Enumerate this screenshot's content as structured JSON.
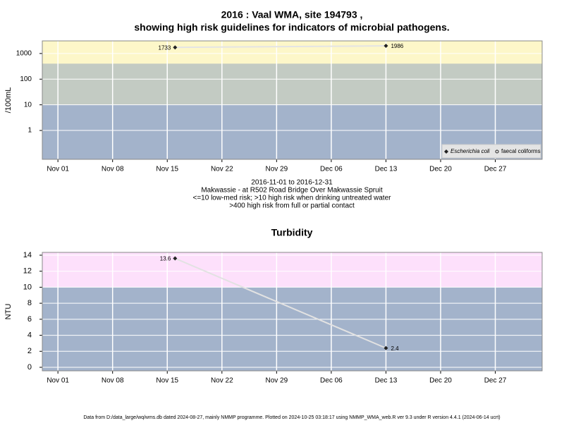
{
  "chart_data": [
    {
      "type": "line",
      "title": [
        "2016 : Vaal WMA, site 194793 ,",
        "showing high risk guidelines for indicators of microbial pathogens."
      ],
      "notes": [
        "2016-11-01 to 2016-12-31",
        "Makwassie - at R502 Road Bridge Over Makwassie Spruit",
        "<=10 low-med risk; >10 high risk when drinking untreated water",
        ">400 high risk from full or partial contact"
      ],
      "y_label": "/100mL",
      "log_y": true,
      "x": [
        "2016-11-16",
        "2016-12-13"
      ],
      "series": [
        {
          "name": "Escherichia coli",
          "color": "#222222",
          "line_color": "#e4e4e4",
          "marker": "diamond",
          "values": [
            1733,
            1986
          ]
        },
        {
          "name": "faecal coliforms",
          "color": "#222222",
          "line_color": "#e4e4e4",
          "marker": "circle",
          "values": [
            null,
            null
          ]
        }
      ],
      "xlim": [
        "2016-10-30",
        "2017-01-02"
      ],
      "xticks": [
        {
          "value": "2016-11-01",
          "label": "Nov 01"
        },
        {
          "value": "2016-11-08",
          "label": "Nov 08"
        },
        {
          "value": "2016-11-15",
          "label": "Nov 15"
        },
        {
          "value": "2016-11-22",
          "label": "Nov 22"
        },
        {
          "value": "2016-11-29",
          "label": "Nov 29"
        },
        {
          "value": "2016-12-06",
          "label": "Dec 06"
        },
        {
          "value": "2016-12-13",
          "label": "Dec 13"
        },
        {
          "value": "2016-12-20",
          "label": "Dec 20"
        },
        {
          "value": "2016-12-27",
          "label": "Dec 27"
        }
      ],
      "ylim": [
        0.075,
        3100
      ],
      "yticks": [
        1,
        10,
        100,
        1000
      ],
      "grid": true,
      "background": "#a3b3cb",
      "bands": [
        {
          "from": 10,
          "to": 400,
          "color": "#c3cbc3"
        },
        {
          "from": 400,
          "to": 3100,
          "color": "#fdf7c9"
        }
      ],
      "legend": "lower right"
    },
    {
      "type": "line",
      "title": [
        "Turbidity"
      ],
      "y_label": "NTU",
      "x": [
        "2016-11-16",
        "2016-12-13"
      ],
      "series": [
        {
          "name": null,
          "color": "#222222",
          "line_color": "#e2e2e2",
          "marker": "diamond",
          "values": [
            13.6,
            2.4
          ]
        }
      ],
      "xlim": [
        "2016-10-30",
        "2017-01-02"
      ],
      "xticks": [
        {
          "value": "2016-11-01",
          "label": "Nov 01"
        },
        {
          "value": "2016-11-08",
          "label": "Nov 08"
        },
        {
          "value": "2016-11-15",
          "label": "Nov 15"
        },
        {
          "value": "2016-11-22",
          "label": "Nov 22"
        },
        {
          "value": "2016-11-29",
          "label": "Nov 29"
        },
        {
          "value": "2016-12-06",
          "label": "Dec 06"
        },
        {
          "value": "2016-12-13",
          "label": "Dec 13"
        },
        {
          "value": "2016-12-20",
          "label": "Dec 20"
        },
        {
          "value": "2016-12-27",
          "label": "Dec 27"
        }
      ],
      "ylim": [
        -0.44,
        14.35
      ],
      "yticks": [
        0,
        2,
        4,
        6,
        8,
        10,
        12,
        14
      ],
      "grid": true,
      "background": "#a3b3cb",
      "bands": [
        {
          "from": 10,
          "to": 14.35,
          "color": "#fde0fb"
        }
      ]
    }
  ],
  "footer": "Data from D:/data_large/wq/wms.db dated 2024-08-27, mainly NMMP programme. Plotted on 2024-10-25 03:18:17 using NMMP_WMA_web.R ver 9.3 under R version 4.4.1 (2024-06-14 ucrt)"
}
